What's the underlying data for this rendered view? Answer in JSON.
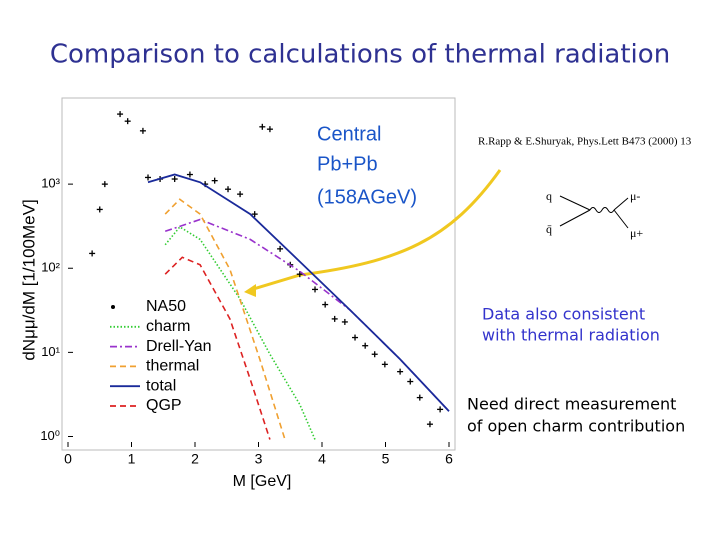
{
  "slide_title": "Comparison to calculations of thermal radiation",
  "chart_data": {
    "type": "line",
    "x_label": "M [GeV]",
    "y_label": "dNμμ/dM [1/100MeV]",
    "xlim": [
      0,
      6
    ],
    "xticks": [
      0,
      1,
      2,
      3,
      4,
      5,
      6
    ],
    "ylim": [
      0.75,
      10000
    ],
    "ylog": true,
    "yticks": [
      {
        "value": 1,
        "label": "10⁰"
      },
      {
        "value": 10,
        "label": "10¹"
      },
      {
        "value": 100,
        "label": "10²"
      },
      {
        "value": 1000,
        "label": "10³"
      }
    ],
    "legend": "lower left",
    "annotations": [
      "Central",
      "Pb+Pb",
      "(158AGeV)"
    ],
    "series": [
      {
        "name": "NA50",
        "color": "#000000",
        "style": "points",
        "x": [
          0.82,
          0.94,
          1.18,
          0.58,
          0.5,
          0.38,
          1.26,
          1.45,
          1.68,
          1.92,
          2.16,
          2.31,
          2.52,
          2.71,
          2.94,
          3.06,
          3.18,
          3.34,
          3.5,
          3.65,
          3.89,
          4.05,
          4.2,
          4.36,
          4.52,
          4.68,
          4.83,
          4.99,
          5.23,
          5.39,
          5.54,
          5.7,
          5.86
        ],
        "values": [
          6800,
          5600,
          4300,
          1000,
          500,
          150,
          1200,
          1150,
          1150,
          1300,
          1000,
          1100,
          870,
          760,
          440,
          4800,
          4500,
          170,
          110,
          85,
          56,
          37,
          25,
          23,
          15,
          12,
          9.5,
          7.2,
          5.9,
          4.5,
          2.9,
          1.4,
          2.1
        ]
      },
      {
        "name": "charm",
        "color": "#33cc33",
        "style": "dotted",
        "x": [
          1.53,
          1.76,
          2.08,
          2.71,
          3.18,
          3.65,
          3.89
        ],
        "values": [
          190,
          310,
          220,
          43,
          9.5,
          2.4,
          0.92
        ]
      },
      {
        "name": "Drell-Yan",
        "color": "#9933cc",
        "style": "dashdot",
        "x": [
          1.53,
          2.08,
          2.87,
          3.65,
          4.44,
          5.23,
          6
        ],
        "values": [
          275,
          380,
          220,
          92,
          32,
          8.3,
          2
        ]
      },
      {
        "name": "thermal",
        "color": "#f0a030",
        "style": "dashed",
        "x": [
          1.53,
          1.76,
          2.08,
          2.55,
          3.02,
          3.42
        ],
        "values": [
          440,
          660,
          440,
          97,
          8.3,
          0.9
        ]
      },
      {
        "name": "total",
        "color": "#1a2a9a",
        "style": "solid",
        "x": [
          1.26,
          1.68,
          2.08,
          2.87,
          3.65,
          4.44,
          5.23,
          6
        ],
        "values": [
          1050,
          1300,
          1050,
          440,
          120,
          32,
          8.3,
          2
        ]
      },
      {
        "name": "QGP",
        "color": "#dd2222",
        "style": "dashed",
        "x": [
          1.53,
          1.8,
          2.08,
          2.55,
          2.87,
          3.18
        ],
        "values": [
          85,
          135,
          110,
          25,
          4.8,
          0.92
        ]
      }
    ]
  },
  "reference": "R.Rapp & E.Shuryak, Phys.Lett B473 (2000) 13",
  "diagram_labels": [
    "q",
    "q̄",
    "μ-",
    "μ+"
  ],
  "note_1": [
    "Data also consistent",
    "with thermal radiation"
  ],
  "note_2": [
    "Need direct measurement",
    "of open charm contribution"
  ]
}
